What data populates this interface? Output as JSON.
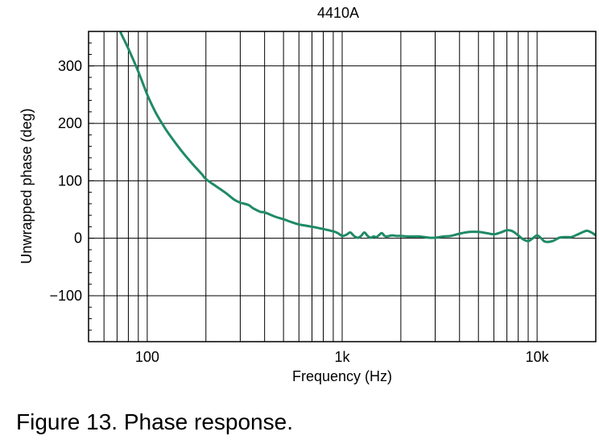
{
  "caption": "Figure 13. Phase response.",
  "colors": {
    "series": "#1f8a66",
    "grid": "#000000",
    "background": "#ffffff"
  },
  "chart_data": {
    "type": "line",
    "title": "4410A",
    "xlabel": "Frequency (Hz)",
    "ylabel": "Unwrapped phase (deg)",
    "xscale": "log",
    "xlim": [
      50,
      20000
    ],
    "ylim": [
      -180,
      360
    ],
    "grid": true,
    "legend": "none",
    "x_ticks": [
      {
        "value": 100,
        "label": "100"
      },
      {
        "value": 1000,
        "label": "1k"
      },
      {
        "value": 10000,
        "label": "10k"
      }
    ],
    "y_ticks": [
      {
        "value": 300,
        "label": "300"
      },
      {
        "value": 200,
        "label": "200"
      },
      {
        "value": 100,
        "label": "100"
      },
      {
        "value": 0,
        "label": "0"
      },
      {
        "value": -100,
        "label": "−100"
      }
    ],
    "series": [
      {
        "x": [
          73,
          80,
          90,
          100,
          110,
          120,
          130,
          150,
          170,
          190,
          200,
          220,
          250,
          280,
          300,
          330,
          350,
          380,
          400,
          450,
          500,
          550,
          600,
          650,
          700,
          800,
          900,
          950,
          1000,
          1050,
          1100,
          1150,
          1200,
          1250,
          1300,
          1350,
          1400,
          1450,
          1500,
          1550,
          1600,
          1650,
          1700,
          1800,
          1900,
          2000,
          2200,
          2500,
          2800,
          3000,
          3300,
          3600,
          4000,
          4500,
          5000,
          5500,
          6000,
          6500,
          7000,
          7500,
          8000,
          8500,
          9000,
          9500,
          10000,
          10500,
          11000,
          12000,
          13000,
          14000,
          15000,
          16000,
          17000,
          18000,
          19000,
          20000
        ],
        "y": [
          358,
          330,
          290,
          250,
          220,
          198,
          180,
          152,
          130,
          112,
          103,
          93,
          80,
          67,
          62,
          58,
          52,
          46,
          45,
          38,
          33,
          28,
          24,
          22,
          20,
          16,
          12,
          9,
          4,
          6,
          10,
          4,
          1,
          4,
          10,
          4,
          1,
          3,
          2,
          6,
          9,
          4,
          3,
          5,
          4,
          4,
          3,
          3,
          1,
          1,
          3,
          4,
          8,
          11,
          11,
          9,
          7,
          10,
          14,
          12,
          5,
          -2,
          -5,
          0,
          5,
          0,
          -6,
          -5,
          1,
          2,
          2,
          6,
          10,
          13,
          10,
          5
        ]
      }
    ]
  }
}
